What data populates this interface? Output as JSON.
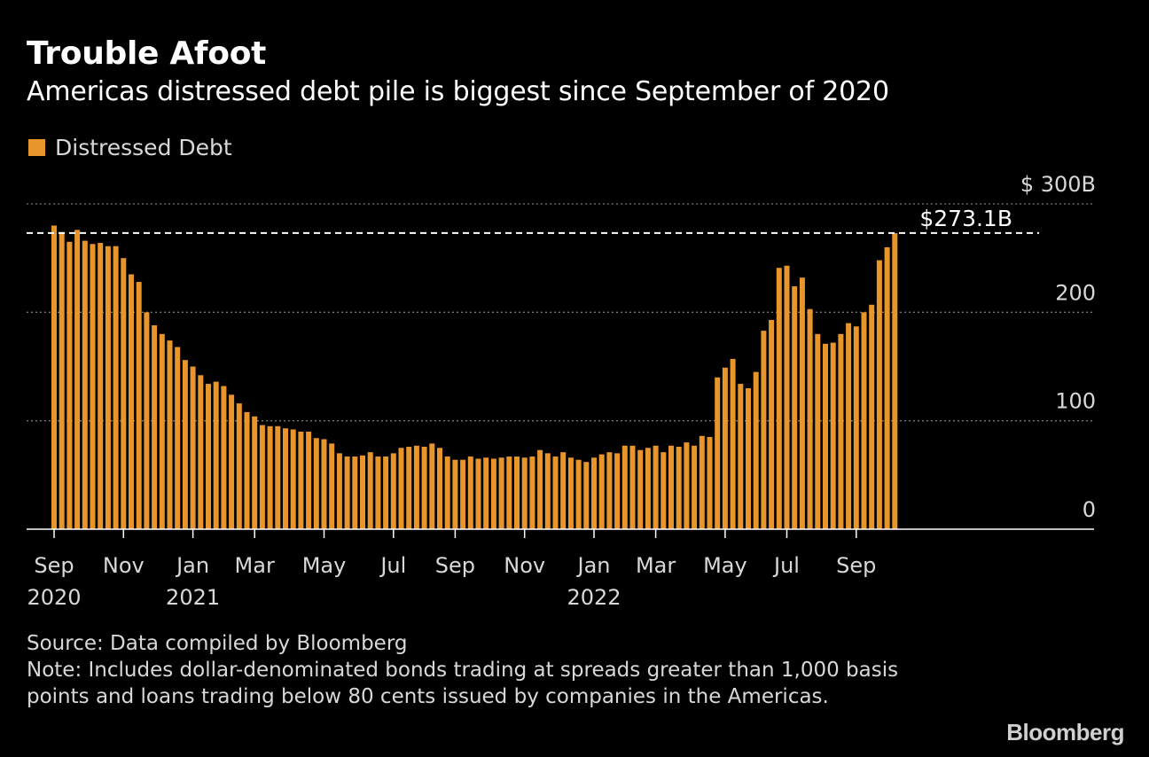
{
  "header": {
    "title": "Trouble Afoot",
    "subtitle": "Americas distressed debt pile is biggest since September of 2020"
  },
  "legend": {
    "label": "Distressed Debt",
    "color": "#e8952b"
  },
  "footer": {
    "source": "Source: Data compiled by Bloomberg",
    "note": "Note: Includes dollar-denominated bonds trading at spreads greater than 1,000 basis points and loans trading below 80 cents issued by companies in the Americas."
  },
  "brand": {
    "name": "Bloomberg"
  },
  "colors": {
    "bar": "#e8952b",
    "background": "#000000",
    "grid": "#777777",
    "text": "#ffffff"
  },
  "chart_data": {
    "type": "bar",
    "title": "Trouble Afoot",
    "subtitle": "Americas distressed debt pile is biggest since September of 2020",
    "ylabel": "",
    "ylim": [
      0,
      300
    ],
    "yticks": [
      {
        "value": 300,
        "label": "$ 300B"
      },
      {
        "value": 200,
        "label": "200"
      },
      {
        "value": 100,
        "label": "100"
      },
      {
        "value": 0,
        "label": "0"
      }
    ],
    "grid": true,
    "x_ticks": [
      {
        "index": 0,
        "label": "Sep",
        "year": "2020"
      },
      {
        "index": 9,
        "label": "Nov",
        "year": ""
      },
      {
        "index": 18,
        "label": "Jan",
        "year": "2021"
      },
      {
        "index": 26,
        "label": "Mar",
        "year": ""
      },
      {
        "index": 35,
        "label": "May",
        "year": ""
      },
      {
        "index": 44,
        "label": "Jul",
        "year": ""
      },
      {
        "index": 52,
        "label": "Sep",
        "year": ""
      },
      {
        "index": 61,
        "label": "Nov",
        "year": ""
      },
      {
        "index": 70,
        "label": "Jan",
        "year": "2022"
      },
      {
        "index": 78,
        "label": "Mar",
        "year": ""
      },
      {
        "index": 87,
        "label": "May",
        "year": ""
      },
      {
        "index": 95,
        "label": "Jul",
        "year": ""
      },
      {
        "index": 104,
        "label": "Sep",
        "year": ""
      }
    ],
    "reference_line": {
      "value": 273.1,
      "label": "$273.1B"
    },
    "series": [
      {
        "name": "Distressed Debt",
        "values": [
          280,
          274,
          265,
          276,
          266,
          263,
          264,
          261,
          261,
          250,
          235,
          228,
          200,
          188,
          180,
          174,
          168,
          156,
          150,
          142,
          134,
          136,
          132,
          124,
          116,
          108,
          104,
          96,
          95,
          95,
          93,
          92,
          90,
          90,
          84,
          83,
          79,
          70,
          67,
          67,
          68,
          71,
          67,
          67,
          70,
          75,
          76,
          77,
          76,
          79,
          75,
          67,
          64,
          64,
          67,
          65,
          66,
          65,
          66,
          67,
          67,
          66,
          67,
          73,
          70,
          67,
          71,
          66,
          64,
          62,
          66,
          69,
          71,
          70,
          77,
          77,
          73,
          75,
          77,
          71,
          77,
          76,
          80,
          77,
          86,
          85,
          140,
          149,
          157,
          134,
          130,
          145,
          183,
          193,
          241,
          243,
          224,
          232,
          203,
          180,
          171,
          172,
          180,
          190,
          187,
          200,
          207,
          248,
          260,
          273
        ]
      }
    ]
  }
}
